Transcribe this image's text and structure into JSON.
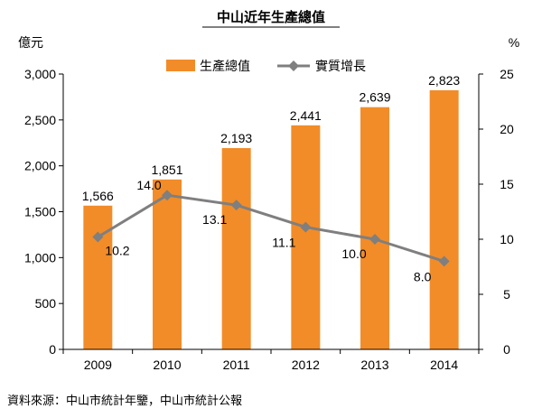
{
  "chart_data": {
    "type": "bar",
    "title": "中山近年生產總值",
    "categories": [
      "2009",
      "2010",
      "2011",
      "2012",
      "2013",
      "2014"
    ],
    "series": [
      {
        "name": "生產總值",
        "type": "bar",
        "axis": "left",
        "values": [
          1566,
          1851,
          2193,
          2441,
          2639,
          2823
        ],
        "labels": [
          "1,566",
          "1,851",
          "2,193",
          "2,441",
          "2,639",
          "2,823"
        ]
      },
      {
        "name": "實質增長",
        "type": "line",
        "axis": "right",
        "values": [
          10.2,
          14.0,
          13.1,
          11.1,
          10.0,
          8.0
        ],
        "labels": [
          "10.2",
          "14.0",
          "13.1",
          "11.1",
          "10.0",
          "8.0"
        ]
      }
    ],
    "y_left": {
      "unit": "億元",
      "range": [
        0,
        3000
      ],
      "ticks": [
        "0",
        "500",
        "1,000",
        "1,500",
        "2,000",
        "2,500",
        "3,000"
      ]
    },
    "y_right": {
      "unit": "%",
      "range": [
        0,
        25
      ],
      "ticks": [
        "0",
        "5",
        "10",
        "15",
        "20",
        "25"
      ]
    },
    "legend_position": "top",
    "grid": false,
    "source": "資料來源：中山市統計年鑒，中山市統計公報",
    "colors": {
      "bar": "#F28C28",
      "line": "#7F7F7F",
      "axis": "#000000"
    }
  }
}
